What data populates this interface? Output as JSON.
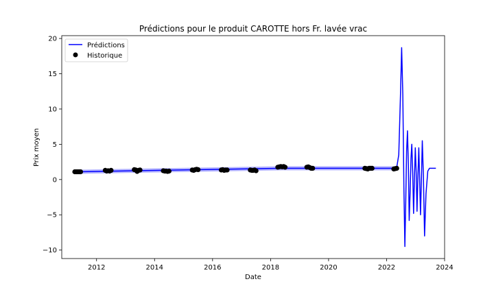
{
  "chart_data": {
    "type": "line",
    "title": "Prédictions pour le produit CAROTTE hors Fr. lavée vrac",
    "xlabel": "Date",
    "ylabel": "Prix moyen",
    "xlim": [
      2010.8,
      2024.0
    ],
    "ylim": [
      -11.2,
      20.4
    ],
    "xticks": [
      2012,
      2014,
      2016,
      2018,
      2020,
      2022,
      2024
    ],
    "yticks": [
      -10,
      -5,
      0,
      5,
      10,
      15,
      20
    ],
    "grid": false,
    "legend_position": "top-left",
    "series": [
      {
        "name": "Prédictions",
        "kind": "line",
        "color": "#0000ff",
        "band_color": "#b3b3ff",
        "points": [
          [
            2011.3,
            1.1
          ],
          [
            2013.3,
            1.25
          ],
          [
            2016.3,
            1.45
          ],
          [
            2018.4,
            1.6
          ],
          [
            2020.3,
            1.6
          ],
          [
            2022.25,
            1.6
          ],
          [
            2022.35,
            1.7
          ],
          [
            2022.42,
            3.5
          ],
          [
            2022.48,
            12.0
          ],
          [
            2022.52,
            18.7
          ],
          [
            2022.56,
            12.0
          ],
          [
            2022.6,
            -2.0
          ],
          [
            2022.63,
            -9.5
          ],
          [
            2022.66,
            -3.0
          ],
          [
            2022.69,
            4.0
          ],
          [
            2022.72,
            6.9
          ],
          [
            2022.75,
            2.0
          ],
          [
            2022.78,
            -5.8
          ],
          [
            2022.81,
            -2.0
          ],
          [
            2022.84,
            3.0
          ],
          [
            2022.87,
            5.0
          ],
          [
            2022.9,
            1.0
          ],
          [
            2022.93,
            -4.8
          ],
          [
            2022.96,
            0.0
          ],
          [
            2022.99,
            4.5
          ],
          [
            2023.02,
            1.0
          ],
          [
            2023.05,
            -4.5
          ],
          [
            2023.08,
            0.5
          ],
          [
            2023.11,
            4.5
          ],
          [
            2023.14,
            0.0
          ],
          [
            2023.17,
            -5.0
          ],
          [
            2023.2,
            0.0
          ],
          [
            2023.23,
            5.5
          ],
          [
            2023.27,
            0.5
          ],
          [
            2023.31,
            -8.0
          ],
          [
            2023.36,
            -2.0
          ],
          [
            2023.42,
            1.2
          ],
          [
            2023.48,
            1.6
          ],
          [
            2023.7,
            1.6
          ]
        ]
      },
      {
        "name": "Historique",
        "kind": "scatter",
        "color": "#000000",
        "points": [
          [
            2011.25,
            1.1
          ],
          [
            2011.3,
            1.1
          ],
          [
            2011.35,
            1.1
          ],
          [
            2011.4,
            1.1
          ],
          [
            2011.45,
            1.1
          ],
          [
            2012.3,
            1.3
          ],
          [
            2012.35,
            1.2
          ],
          [
            2012.4,
            1.25
          ],
          [
            2012.45,
            1.2
          ],
          [
            2012.5,
            1.3
          ],
          [
            2013.3,
            1.4
          ],
          [
            2013.35,
            1.35
          ],
          [
            2013.4,
            1.15
          ],
          [
            2013.45,
            1.3
          ],
          [
            2013.5,
            1.35
          ],
          [
            2014.3,
            1.25
          ],
          [
            2014.35,
            1.2
          ],
          [
            2014.4,
            1.2
          ],
          [
            2014.45,
            1.15
          ],
          [
            2014.5,
            1.2
          ],
          [
            2015.3,
            1.35
          ],
          [
            2015.35,
            1.3
          ],
          [
            2015.4,
            1.4
          ],
          [
            2015.45,
            1.45
          ],
          [
            2015.5,
            1.4
          ],
          [
            2016.3,
            1.35
          ],
          [
            2016.35,
            1.4
          ],
          [
            2016.4,
            1.3
          ],
          [
            2016.45,
            1.35
          ],
          [
            2016.5,
            1.35
          ],
          [
            2017.3,
            1.35
          ],
          [
            2017.35,
            1.3
          ],
          [
            2017.4,
            1.3
          ],
          [
            2017.45,
            1.35
          ],
          [
            2017.5,
            1.25
          ],
          [
            2018.25,
            1.75
          ],
          [
            2018.3,
            1.8
          ],
          [
            2018.35,
            1.85
          ],
          [
            2018.4,
            1.8
          ],
          [
            2018.45,
            1.85
          ],
          [
            2018.5,
            1.75
          ],
          [
            2019.25,
            1.75
          ],
          [
            2019.3,
            1.8
          ],
          [
            2019.35,
            1.7
          ],
          [
            2019.4,
            1.6
          ],
          [
            2019.45,
            1.6
          ],
          [
            2021.25,
            1.6
          ],
          [
            2021.3,
            1.55
          ],
          [
            2021.35,
            1.5
          ],
          [
            2021.4,
            1.6
          ],
          [
            2021.45,
            1.6
          ],
          [
            2021.5,
            1.6
          ],
          [
            2022.25,
            1.5
          ],
          [
            2022.3,
            1.55
          ],
          [
            2022.35,
            1.6
          ]
        ]
      }
    ]
  }
}
